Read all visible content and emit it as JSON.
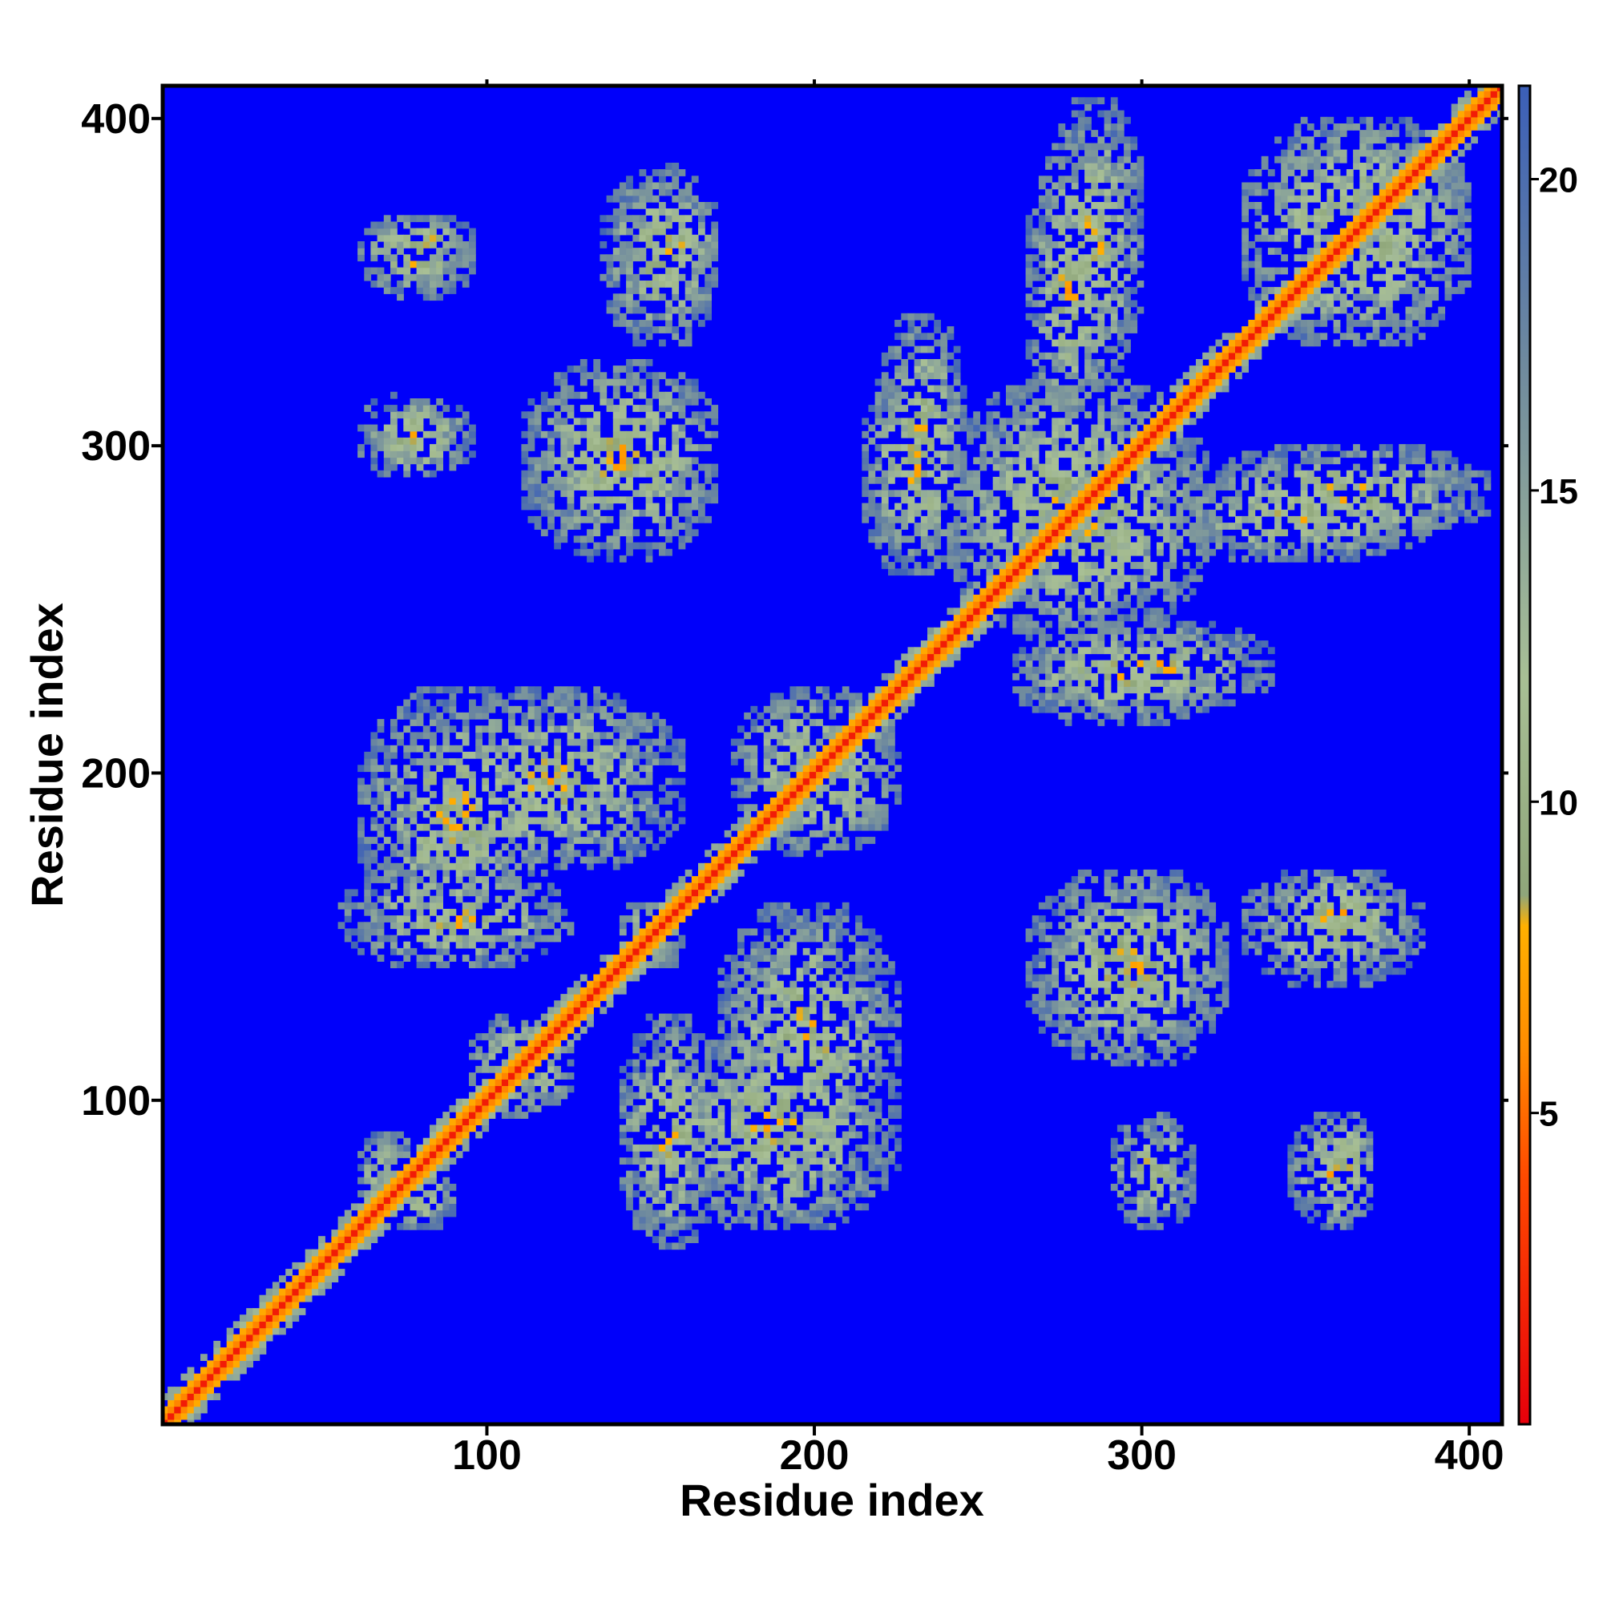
{
  "chart_data": {
    "type": "heatmap",
    "title": "",
    "xlabel": "Residue index",
    "ylabel": "Residue index",
    "xlim": [
      1,
      410
    ],
    "ylim": [
      1,
      410
    ],
    "x_ticks": [
      100,
      200,
      300,
      400
    ],
    "y_ticks": [
      100,
      200,
      300,
      400
    ],
    "x_tick_labels": [
      "100",
      "200",
      "300",
      "400"
    ],
    "y_tick_labels": [
      "100",
      "200",
      "300",
      "400"
    ],
    "colorbar": {
      "range": [
        0,
        21.5
      ],
      "ticks": [
        5,
        10,
        15,
        20
      ],
      "tick_labels": [
        "5",
        "10",
        "15",
        "20"
      ],
      "stops": [
        {
          "value": 0,
          "color": "#e8000b"
        },
        {
          "value": 4,
          "color": "#ff4a00"
        },
        {
          "value": 6,
          "color": "#ff8c00"
        },
        {
          "value": 8,
          "color": "#ffb000"
        },
        {
          "value": 8.5,
          "color": "#8fa67a"
        },
        {
          "value": 12,
          "color": "#a8bf95"
        },
        {
          "value": 17,
          "color": "#6f8a9e"
        },
        {
          "value": 21.5,
          "color": "#3b5fb8"
        }
      ],
      "background_value": 21.5,
      "background_color": "#0000fa"
    },
    "description_of_values": "Pairwise residue distance map (symmetric about diagonal); values below ~8 plotted red/orange, 8–20 grey-green, above cutoff shown in blue.",
    "diagonal_band": {
      "from": 1,
      "to": 410
    },
    "contact_regions": [
      {
        "x": [
          60,
          80
        ],
        "y": [
          60,
          90
        ]
      },
      {
        "x": [
          95,
          125
        ],
        "y": [
          95,
          125
        ]
      },
      {
        "x": [
          140,
          160
        ],
        "y": [
          140,
          160
        ]
      },
      {
        "x": [
          175,
          225
        ],
        "y": [
          175,
          225
        ]
      },
      {
        "x": [
          240,
          320
        ],
        "y": [
          240,
          320
        ]
      },
      {
        "x": [
          330,
          400
        ],
        "y": [
          330,
          400
        ]
      },
      {
        "x": [
          60,
          120
        ],
        "y": [
          150,
          225
        ]
      },
      {
        "x": [
          140,
          170
        ],
        "y": [
          55,
          125
        ]
      },
      {
        "x": [
          170,
          225
        ],
        "y": [
          80,
          160
        ]
      },
      {
        "x": [
          60,
          95
        ],
        "y": [
          290,
          315
        ]
      },
      {
        "x": [
          115,
          170
        ],
        "y": [
          270,
          325
        ]
      },
      {
        "x": [
          60,
          95
        ],
        "y": [
          345,
          370
        ]
      },
      {
        "x": [
          135,
          170
        ],
        "y": [
          330,
          385
        ]
      },
      {
        "x": [
          215,
          245
        ],
        "y": [
          260,
          325
        ]
      },
      {
        "x": [
          270,
          300
        ],
        "y": [
          320,
          405
        ]
      },
      {
        "x": [
          305,
          390
        ],
        "y": [
          265,
          290
        ]
      },
      {
        "x": [
          270,
          340
        ],
        "y": [
          220,
          245
        ]
      },
      {
        "x": [
          265,
          325
        ],
        "y": [
          110,
          170
        ]
      },
      {
        "x": [
          340,
          380
        ],
        "y": [
          145,
          170
        ]
      },
      {
        "x": [
          355,
          370
        ],
        "y": [
          65,
          95
        ]
      },
      {
        "x": [
          295,
          310
        ],
        "y": [
          70,
          80
        ]
      }
    ]
  }
}
